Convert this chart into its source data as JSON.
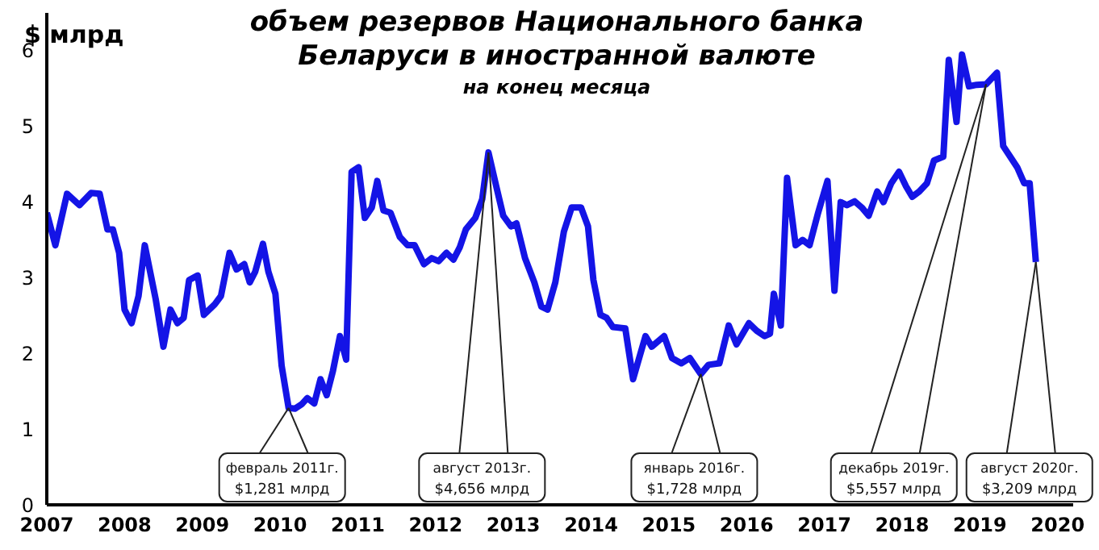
{
  "chart_data": {
    "type": "line",
    "title": "объем резервов Национального банка Беларуси в иностранной валюте",
    "subtitle": "на конец месяца",
    "ylabel": "$ млрд",
    "xlim": [
      2007,
      2020.2
    ],
    "xticks": [
      2007,
      2008,
      2009,
      2010,
      2011,
      2012,
      2013,
      2014,
      2015,
      2016,
      2017,
      2018,
      2019,
      2020
    ],
    "ylim": [
      0,
      6.5
    ],
    "yticks": [
      0,
      1,
      2,
      3,
      4,
      5,
      6
    ],
    "grid": false,
    "legend": false,
    "marker": "none",
    "line_style": "solid",
    "x": [
      2007.0,
      2007.11,
      2007.26,
      2007.42,
      2007.57,
      2007.68,
      2007.78,
      2007.85,
      2007.93,
      2008.0,
      2008.09,
      2008.18,
      2008.26,
      2008.4,
      2008.5,
      2008.59,
      2008.68,
      2008.76,
      2008.83,
      2008.94,
      2009.02,
      2009.16,
      2009.24,
      2009.35,
      2009.44,
      2009.54,
      2009.61,
      2009.68,
      2009.78,
      2009.85,
      2009.94,
      2010.02,
      2010.11,
      2010.19,
      2010.28,
      2010.35,
      2010.44,
      2010.52,
      2010.6,
      2010.68,
      2010.77,
      2010.85,
      2010.92,
      2011.01,
      2011.09,
      2011.18,
      2011.25,
      2011.33,
      2011.42,
      2011.54,
      2011.64,
      2011.73,
      2011.85,
      2011.95,
      2012.04,
      2012.14,
      2012.23,
      2012.31,
      2012.39,
      2012.51,
      2012.6,
      2012.68,
      2012.78,
      2012.87,
      2012.97,
      2013.04,
      2013.15,
      2013.27,
      2013.36,
      2013.44,
      2013.54,
      2013.65,
      2013.75,
      2013.87,
      2013.96,
      2014.03,
      2014.12,
      2014.2,
      2014.28,
      2014.44,
      2014.54,
      2014.7,
      2014.78,
      2014.94,
      2015.04,
      2015.16,
      2015.27,
      2015.41,
      2015.51,
      2015.65,
      2015.77,
      2015.87,
      2016.03,
      2016.13,
      2016.23,
      2016.3,
      2016.35,
      2016.44,
      2016.52,
      2016.63,
      2016.72,
      2016.81,
      2016.92,
      2017.04,
      2017.13,
      2017.21,
      2017.29,
      2017.39,
      2017.48,
      2017.57,
      2017.68,
      2017.76,
      2017.86,
      2017.96,
      2018.05,
      2018.13,
      2018.22,
      2018.32,
      2018.41,
      2018.53,
      2018.6,
      2018.7,
      2018.77,
      2018.86,
      2018.96,
      2019.08,
      2019.22,
      2019.3,
      2019.39,
      2019.48,
      2019.57,
      2019.64,
      2019.72
    ],
    "series": [
      {
        "color": "#1414e6",
        "values": [
          3.86,
          3.43,
          4.11,
          3.96,
          4.12,
          4.11,
          3.64,
          3.64,
          3.33,
          2.58,
          2.4,
          2.76,
          3.43,
          2.72,
          2.09,
          2.58,
          2.4,
          2.47,
          2.97,
          3.03,
          2.51,
          2.65,
          2.76,
          3.33,
          3.11,
          3.18,
          2.94,
          3.08,
          3.45,
          3.08,
          2.79,
          1.84,
          1.281,
          1.27,
          1.33,
          1.41,
          1.34,
          1.66,
          1.45,
          1.77,
          2.23,
          1.92,
          4.4,
          4.46,
          3.79,
          3.93,
          4.28,
          3.89,
          3.86,
          3.54,
          3.43,
          3.43,
          3.18,
          3.26,
          3.22,
          3.33,
          3.24,
          3.4,
          3.64,
          3.79,
          4.04,
          4.656,
          4.21,
          3.82,
          3.68,
          3.72,
          3.26,
          2.94,
          2.62,
          2.58,
          2.94,
          3.61,
          3.93,
          3.93,
          3.68,
          2.97,
          2.51,
          2.47,
          2.35,
          2.33,
          1.66,
          2.23,
          2.09,
          2.23,
          1.94,
          1.87,
          1.94,
          1.728,
          1.85,
          1.87,
          2.37,
          2.12,
          2.4,
          2.3,
          2.23,
          2.26,
          2.79,
          2.37,
          4.32,
          3.43,
          3.5,
          3.43,
          3.86,
          4.28,
          2.83,
          4.0,
          3.96,
          4.01,
          3.93,
          3.82,
          4.14,
          4.0,
          4.25,
          4.4,
          4.21,
          4.07,
          4.14,
          4.25,
          4.55,
          4.6,
          5.88,
          5.06,
          5.95,
          5.53,
          5.55,
          5.557,
          5.71,
          4.74,
          4.6,
          4.46,
          4.25,
          4.25,
          3.209
        ]
      }
    ],
    "annotations": [
      {
        "text": "февраль 2011г.\n$1,281 млрд",
        "x": 2010.11,
        "y": 1.281
      },
      {
        "text": "август 2013г.\n$4,656 млрд",
        "x": 2012.68,
        "y": 4.656
      },
      {
        "text": "январь 2016г.\n$1,728 млрд",
        "x": 2015.41,
        "y": 1.728
      },
      {
        "text": "декабрь 2019г.\n$5,557 млрд",
        "x": 2019.08,
        "y": 5.557
      },
      {
        "text": "август 2020г.\n$3,209 млрд",
        "x": 2019.72,
        "y": 3.209
      }
    ]
  }
}
